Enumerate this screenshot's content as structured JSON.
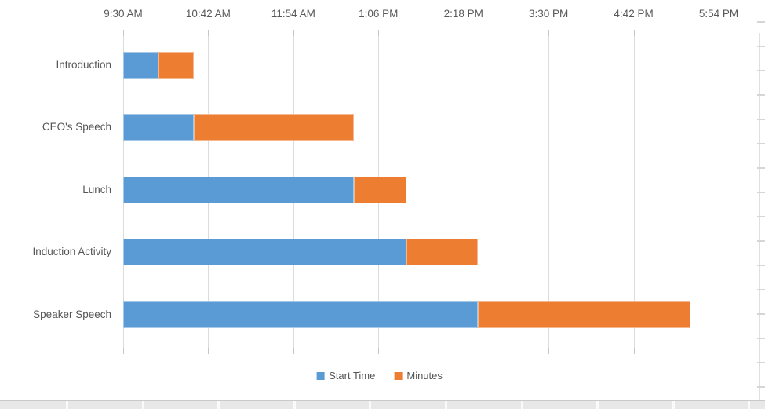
{
  "app": {
    "kind": "spreadsheet-embedded-chart",
    "background_color": "#ffffff"
  },
  "chart_data": {
    "type": "bar",
    "subtype": "horizontal-stacked-gantt",
    "title": "",
    "categories": [
      "Introduction",
      "CEO's Speech",
      "Lunch",
      "Induction Activity",
      "Speaker Speech"
    ],
    "series": [
      {
        "name": "Start Time",
        "color": "#5B9BD5",
        "start_times": [
          "10:00 AM",
          "10:30 AM",
          "12:45 PM",
          "1:30 PM",
          "2:30 PM"
        ],
        "offset_minutes_from_axis_min": [
          30,
          60,
          195,
          240,
          300
        ]
      },
      {
        "name": "Minutes",
        "color": "#ED7D31",
        "values": [
          30,
          135,
          45,
          60,
          180
        ]
      }
    ],
    "x_axis": {
      "position": "top",
      "tick_labels": [
        "9:30 AM",
        "10:42 AM",
        "11:54 AM",
        "1:06 PM",
        "2:18 PM",
        "3:30 PM",
        "4:42 PM",
        "5:54 PM"
      ],
      "min": "9:30 AM",
      "max": "5:54 PM",
      "major_unit_minutes": 72,
      "total_minutes": 504,
      "grid": true
    },
    "y_axis": {
      "position": "left",
      "order": "top-to-bottom"
    },
    "legend": {
      "position": "bottom",
      "entries": [
        {
          "label": "Start Time",
          "color": "#5B9BD5"
        },
        {
          "label": "Minutes",
          "color": "#ED7D31"
        }
      ]
    }
  },
  "decorations": {
    "gridline_color": "#dcdcdc",
    "tick_color": "#c6c6c6",
    "axis_text_color": "#595959",
    "sheet_strip_color": "#e8e8e8",
    "sheet_line_color": "#c9c9c9"
  }
}
